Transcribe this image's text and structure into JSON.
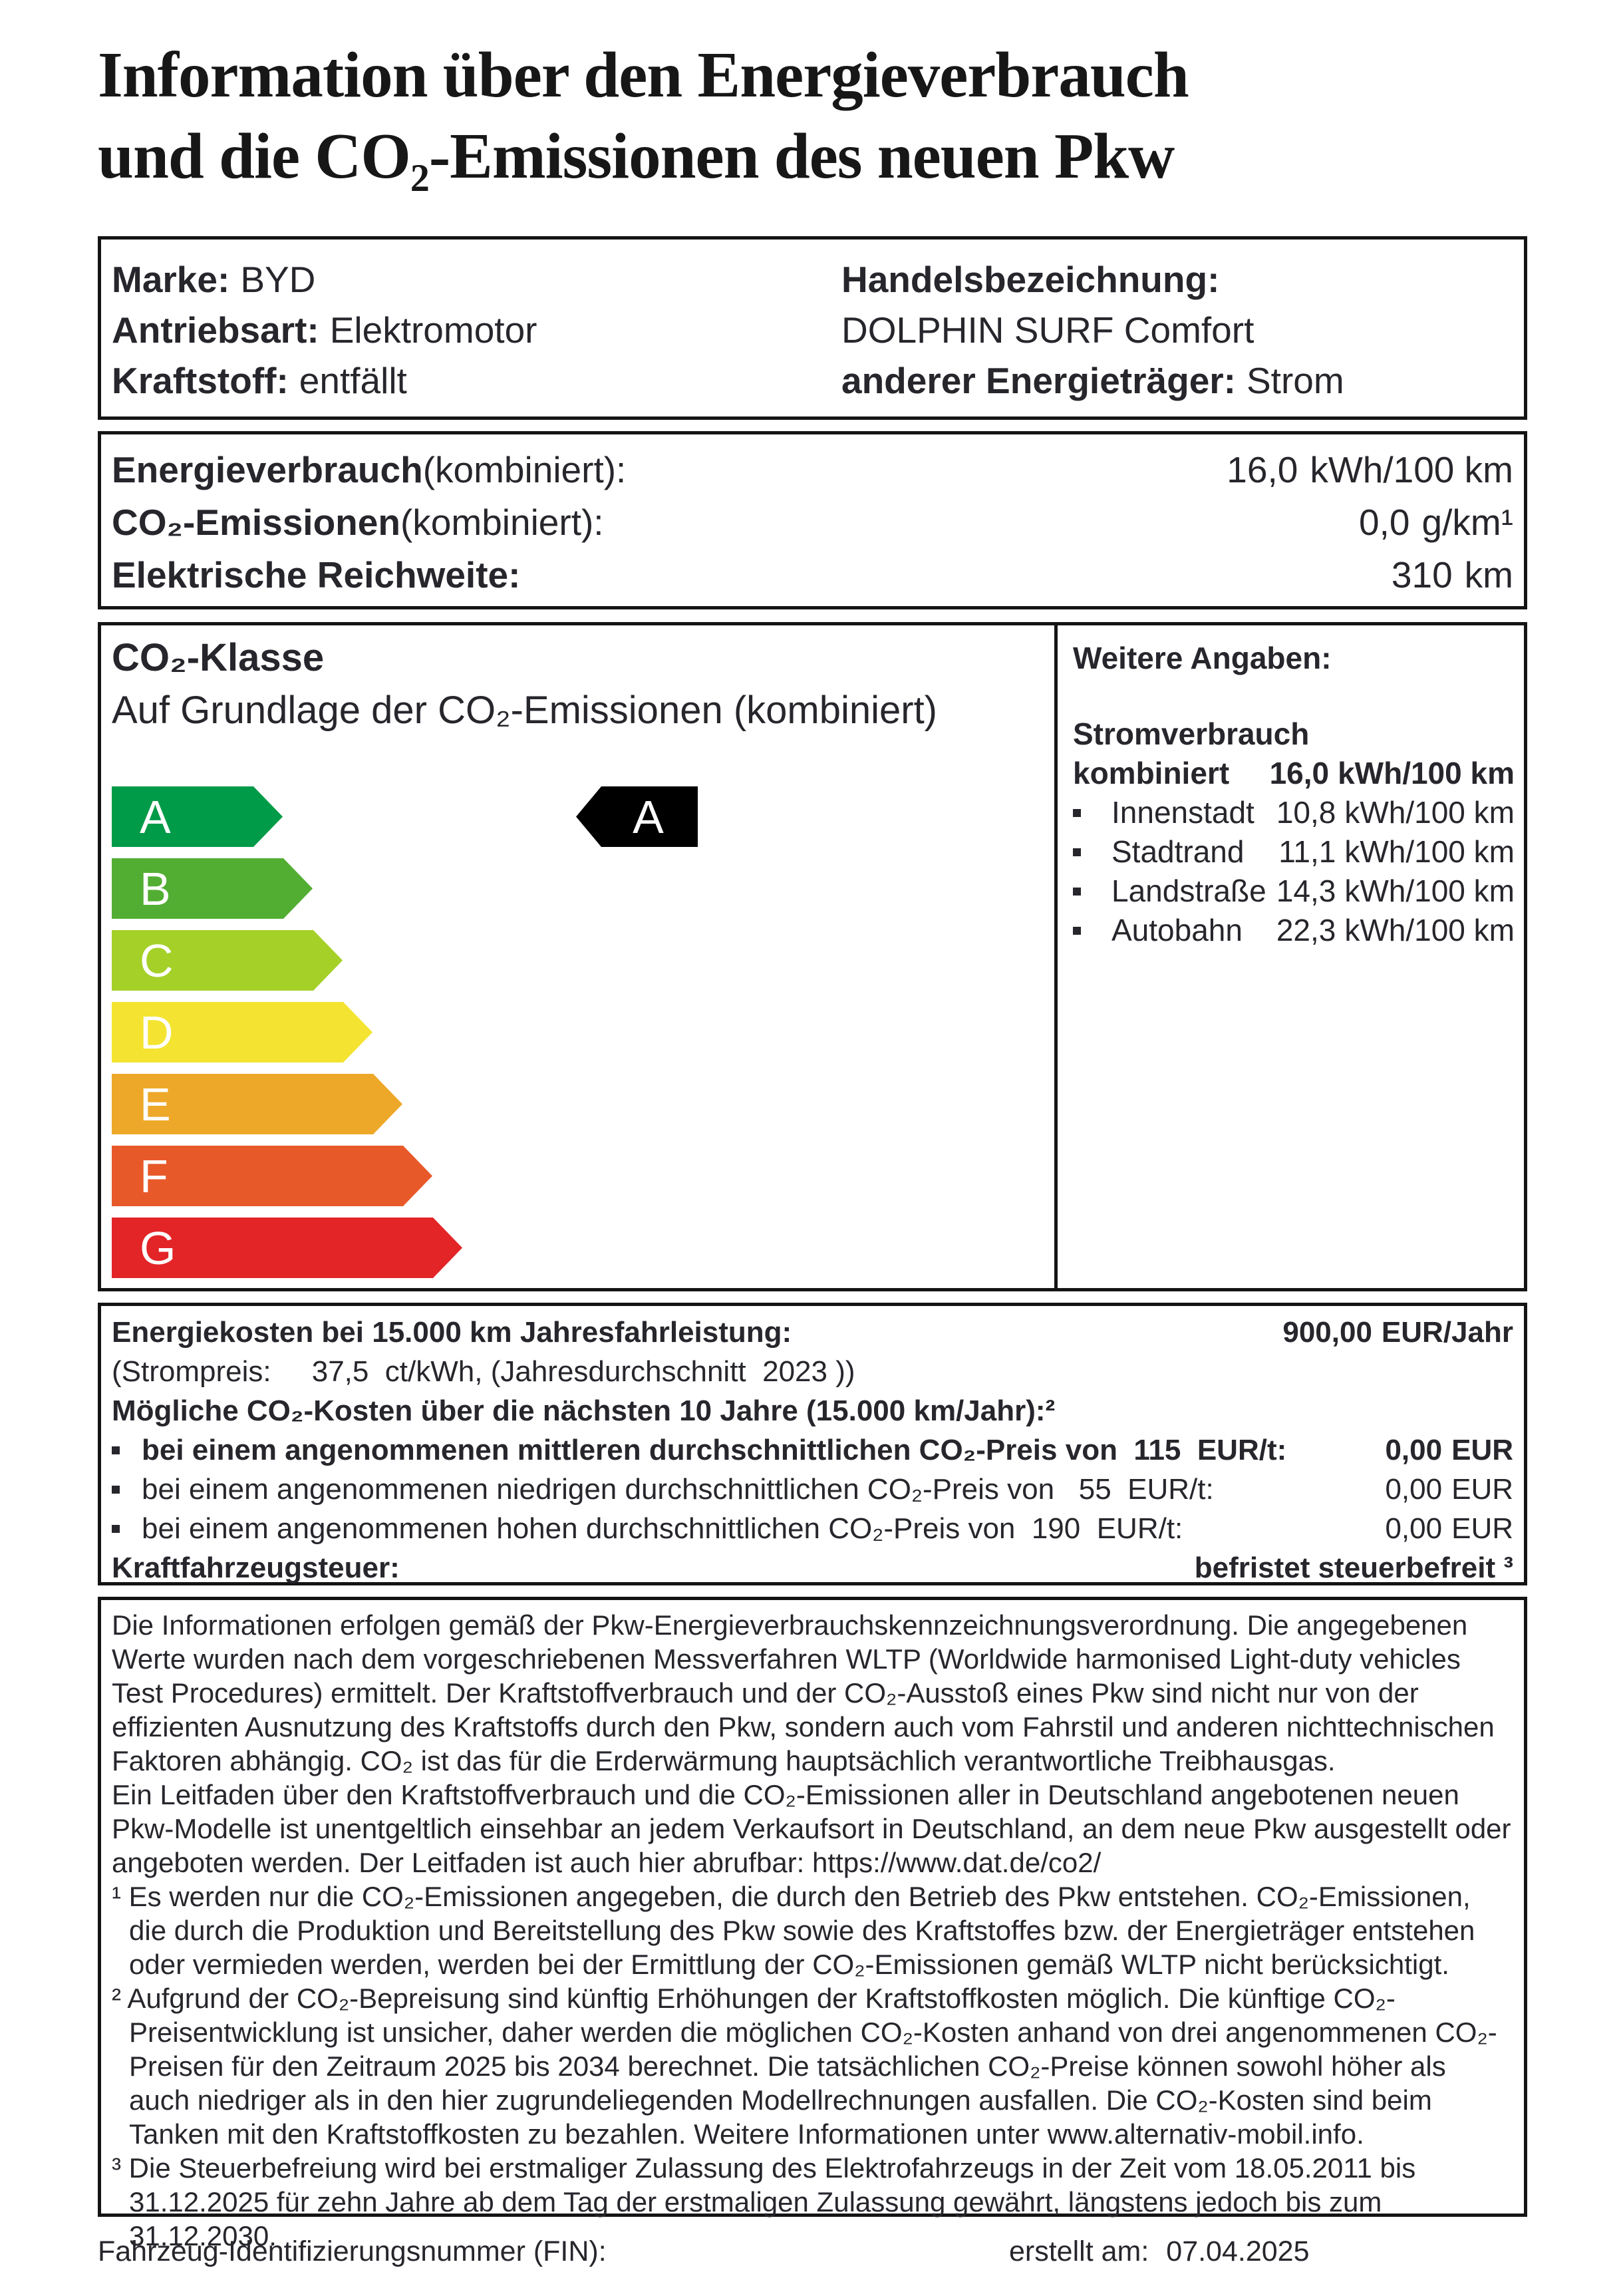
{
  "title": {
    "line1": "Information über den Energieverbrauch",
    "line2": "und die CO₂-Emissionen des neuen Pkw"
  },
  "vehicle": {
    "left": [
      {
        "label": "Marke:",
        "value": "BYD"
      },
      {
        "label": "Antriebsart:",
        "value": "Elektromotor"
      },
      {
        "label": "Kraftstoff:",
        "value": "entfällt"
      }
    ],
    "right": [
      {
        "label": "Handelsbezeichnung:",
        "value": ""
      },
      {
        "label": "",
        "value": "DOLPHIN SURF Comfort"
      },
      {
        "label": "anderer Energieträger:",
        "value": "Strom"
      }
    ]
  },
  "energy": {
    "rows": [
      {
        "label_bold": "Energieverbrauch",
        "label_rest": " (kombiniert):",
        "value": "16,0",
        "unit": "kWh/100 km"
      },
      {
        "label_bold": "CO₂-Emissionen",
        "label_rest": " (kombiniert):",
        "value": "0,0",
        "unit": "g/km¹"
      },
      {
        "label_bold": "Elektrische Reichweite:",
        "label_rest": "",
        "value": "310",
        "unit": "km"
      }
    ]
  },
  "co2_class": {
    "heading": "CO₂-Klasse",
    "subheading": "Auf Grundlage der CO₂-Emissionen (kombiniert)",
    "classes": [
      {
        "letter": "A",
        "color": "#009b48"
      },
      {
        "letter": "B",
        "color": "#52ae32"
      },
      {
        "letter": "C",
        "color": "#a5d028"
      },
      {
        "letter": "D",
        "color": "#f4e431"
      },
      {
        "letter": "E",
        "color": "#eea829"
      },
      {
        "letter": "F",
        "color": "#e8592a"
      },
      {
        "letter": "G",
        "color": "#e32528"
      }
    ],
    "vehicle_class": {
      "letter": "A",
      "color": "#000000"
    }
  },
  "details": {
    "heading": "Weitere Angaben:",
    "power_label_1": "Stromverbrauch",
    "power_label_2": "kombiniert",
    "power_value": "16,0",
    "power_unit": "kWh/100 km",
    "rows": [
      {
        "label": "Innenstadt",
        "value": "10,8",
        "unit": "kWh/100 km"
      },
      {
        "label": "Stadtrand",
        "value": "11,1",
        "unit": "kWh/100 km"
      },
      {
        "label": "Landstraße",
        "value": "14,3",
        "unit": "kWh/100 km"
      },
      {
        "label": "Autobahn",
        "value": "22,3",
        "unit": "kWh/100 km"
      }
    ]
  },
  "costs": {
    "energy_label": "Energiekosten bei 15.000 km Jahresfahrleistung:",
    "energy_value": "900,00",
    "energy_unit": "EUR/Jahr",
    "price_note": "(Strompreis:     37,5  ct/kWh, (Jahresdurchschnitt  2023 ))",
    "co2_heading": "Mögliche CO₂-Kosten über die nächsten 10 Jahre (15.000 km/Jahr):²",
    "bullets": [
      {
        "text": "bei einem angenommenen mittleren durchschnittlichen CO₂-Preis von  115  EUR/t:",
        "value": "0,00",
        "unit": "EUR"
      },
      {
        "text": "bei einem angenommenen niedrigen durchschnittlichen CO₂-Preis von   55  EUR/t:",
        "value": "0,00",
        "unit": "EUR"
      },
      {
        "text": "bei einem angenommenen hohen durchschnittlichen CO₂-Preis von  190  EUR/t:",
        "value": "0,00",
        "unit": "EUR"
      }
    ],
    "tax_label": "Kraftfahrzeugsteuer:",
    "tax_value": "befristet steuerbefreit ³"
  },
  "legal": {
    "paragraphs": [
      {
        "text": "Die Informationen erfolgen gemäß der Pkw-Energieverbrauchskennzeichnungsverordnung. Die angegebenen Werte wurden nach dem vorgeschriebenen Messverfahren WLTP (Worldwide harmonised Light-duty vehicles Test Procedures) ermittelt. Der Kraftstoffverbrauch und der CO₂-Ausstoß eines Pkw sind nicht nur von der effizienten Ausnutzung des Kraftstoffs durch den Pkw, sondern auch vom Fahrstil und anderen nichttechnischen Faktoren abhängig. CO₂ ist das für die Erderwärmung hauptsächlich verantwortliche Treibhausgas."
      },
      {
        "text": "Ein Leitfaden über den Kraftstoffverbrauch und die CO₂-Emissionen aller in Deutschland angebotenen neuen Pkw-Modelle ist unentgeltlich einsehbar an jedem Verkaufsort in Deutschland, an dem neue Pkw ausgestellt oder angeboten werden. Der Leitfaden ist auch hier abrufbar:  https://www.dat.de/co2/"
      },
      {
        "text": "¹ Es werden nur die CO₂-Emissionen angegeben, die durch den Betrieb des Pkw entstehen. CO₂-Emissionen, die durch die Produktion und Bereitstellung des Pkw sowie des Kraftstoffes bzw. der Energieträger entstehen oder vermieden werden, werden bei der Ermittlung der CO₂-Emissionen gemäß WLTP nicht berücksichtigt."
      },
      {
        "text": "² Aufgrund der CO₂-Bepreisung sind künftig Erhöhungen der Kraftstoffkosten möglich. Die künftige CO₂-Preisentwicklung ist unsicher, daher werden die möglichen CO₂-Kosten anhand von drei angenommenen CO₂-Preisen für den Zeitraum  2025 bis  2034  berechnet. Die tatsächlichen CO₂-Preise können sowohl höher als auch niedriger als in den hier zugrundeliegenden Modellrechnungen ausfallen. Die CO₂-Kosten sind beim Tanken mit den Kraftstoffkosten zu bezahlen. Weitere Informationen unter www.alternativ-mobil.info."
      },
      {
        "text": "³ Die Steuerbefreiung wird bei erstmaliger Zulassung des Elektrofahrzeugs in der Zeit vom 18.05.2011 bis 31.12.2025 für zehn Jahre ab dem Tag der erstmaligen Zulassung gewährt, längstens jedoch bis zum 31.12.2030."
      }
    ]
  },
  "footer": {
    "fin_label": "Fahrzeug-Identifizierungsnummer (FIN):",
    "created_label": "erstellt am:",
    "created_value": "07.04.2025"
  }
}
